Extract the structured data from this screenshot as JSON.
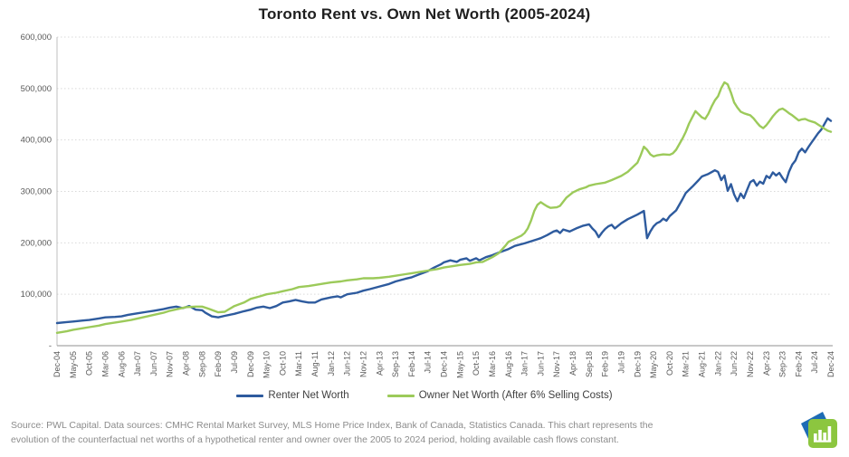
{
  "header": {
    "title": "Toronto Rent vs. Own Net Worth (2005-2024)"
  },
  "legend": [
    {
      "label": "Renter Net Worth",
      "color": "#2e5b9e"
    },
    {
      "label": "Owner Net Worth (After 6% Selling Costs)",
      "color": "#9cca5a"
    }
  ],
  "footer": {
    "line1": "Source: PWL Capital. Data sources: CMHC Rental Market Survey, MLS Home Price Index, Bank of Canada, Statistics Canada. This chart represents the",
    "line2": "evolution of the counterfactual net worths of a hypothetical renter and owner over the 2005 to 2024 period, holding available cash flows constant."
  },
  "logo": {
    "name": "pwl-capital-logo",
    "blue": "#1e6cb5",
    "green": "#8cc63f",
    "bar_glyph": "bar-chart"
  },
  "chart_data": {
    "type": "line",
    "title": "Toronto Rent vs. Own Net Worth (2005-2024)",
    "x_unit": "months since Dec-2004",
    "x_range": [
      0,
      240
    ],
    "x_tick_step_months": 5,
    "x_tick_labels": [
      "Dec-04",
      "May-05",
      "Oct-05",
      "Mar-06",
      "Aug-06",
      "Jan-07",
      "Jun-07",
      "Nov-07",
      "Apr-08",
      "Sep-08",
      "Feb-09",
      "Jul-09",
      "Dec-09",
      "May-10",
      "Oct-10",
      "Mar-11",
      "Aug-11",
      "Jan-12",
      "Jun-12",
      "Nov-12",
      "Apr-13",
      "Sep-13",
      "Feb-14",
      "Jul-14",
      "Dec-14",
      "May-15",
      "Oct-15",
      "Mar-16",
      "Aug-16",
      "Jan-17",
      "Jun-17",
      "Nov-17",
      "Apr-18",
      "Sep-18",
      "Feb-19",
      "Jul-19",
      "Dec-19",
      "May-20",
      "Oct-20",
      "Mar-21",
      "Aug-21",
      "Jan-22",
      "Jun-22",
      "Nov-22",
      "Apr-23",
      "Sep-23",
      "Feb-24",
      "Jul-24",
      "Dec-24"
    ],
    "ylim": [
      0,
      600000
    ],
    "y_ticks": {
      "values": [
        0,
        100000,
        200000,
        300000,
        400000,
        500000,
        600000
      ],
      "labels": [
        "-",
        "100,000",
        "200,000",
        "300,000",
        "400,000",
        "500,000",
        "600,000"
      ]
    },
    "grid": "horizontal dotted",
    "legend_position": "bottom",
    "series": [
      {
        "name": "Renter Net Worth",
        "color": "#2e5b9e",
        "points": [
          [
            0,
            44000
          ],
          [
            3,
            46000
          ],
          [
            5,
            47000
          ],
          [
            8,
            49000
          ],
          [
            10,
            50000
          ],
          [
            13,
            53000
          ],
          [
            15,
            55000
          ],
          [
            18,
            56000
          ],
          [
            20,
            57000
          ],
          [
            22,
            60000
          ],
          [
            25,
            63000
          ],
          [
            28,
            66000
          ],
          [
            30,
            68000
          ],
          [
            33,
            71000
          ],
          [
            35,
            74000
          ],
          [
            37,
            76000
          ],
          [
            39,
            73000
          ],
          [
            41,
            77000
          ],
          [
            43,
            70000
          ],
          [
            45,
            69000
          ],
          [
            46,
            64000
          ],
          [
            48,
            57000
          ],
          [
            50,
            55000
          ],
          [
            52,
            58000
          ],
          [
            55,
            62000
          ],
          [
            58,
            67000
          ],
          [
            60,
            70000
          ],
          [
            62,
            74000
          ],
          [
            64,
            76000
          ],
          [
            66,
            73000
          ],
          [
            68,
            77000
          ],
          [
            70,
            84000
          ],
          [
            72,
            86000
          ],
          [
            74,
            89000
          ],
          [
            76,
            86000
          ],
          [
            78,
            84000
          ],
          [
            80,
            84000
          ],
          [
            82,
            90000
          ],
          [
            85,
            94000
          ],
          [
            87,
            96000
          ],
          [
            88,
            94000
          ],
          [
            90,
            100000
          ],
          [
            93,
            103000
          ],
          [
            95,
            107000
          ],
          [
            97,
            110000
          ],
          [
            100,
            115000
          ],
          [
            103,
            120000
          ],
          [
            105,
            125000
          ],
          [
            108,
            130000
          ],
          [
            110,
            133000
          ],
          [
            112,
            138000
          ],
          [
            115,
            145000
          ],
          [
            117,
            152000
          ],
          [
            119,
            158000
          ],
          [
            120,
            162000
          ],
          [
            122,
            166000
          ],
          [
            124,
            163000
          ],
          [
            125,
            167000
          ],
          [
            127,
            170000
          ],
          [
            128,
            165000
          ],
          [
            130,
            170000
          ],
          [
            131,
            166000
          ],
          [
            133,
            172000
          ],
          [
            135,
            176000
          ],
          [
            137,
            181000
          ],
          [
            140,
            188000
          ],
          [
            142,
            194000
          ],
          [
            145,
            199000
          ],
          [
            147,
            203000
          ],
          [
            149,
            207000
          ],
          [
            150,
            209000
          ],
          [
            152,
            215000
          ],
          [
            154,
            222000
          ],
          [
            155,
            224000
          ],
          [
            156,
            219000
          ],
          [
            157,
            226000
          ],
          [
            159,
            222000
          ],
          [
            161,
            228000
          ],
          [
            163,
            233000
          ],
          [
            165,
            236000
          ],
          [
            166,
            228000
          ],
          [
            167,
            222000
          ],
          [
            168,
            211000
          ],
          [
            169,
            220000
          ],
          [
            170,
            227000
          ],
          [
            171,
            232000
          ],
          [
            172,
            235000
          ],
          [
            173,
            228000
          ],
          [
            175,
            238000
          ],
          [
            177,
            246000
          ],
          [
            179,
            252000
          ],
          [
            180,
            255000
          ],
          [
            182,
            262000
          ],
          [
            183,
            209000
          ],
          [
            184,
            222000
          ],
          [
            185,
            232000
          ],
          [
            186,
            238000
          ],
          [
            187,
            241000
          ],
          [
            188,
            247000
          ],
          [
            189,
            243000
          ],
          [
            190,
            252000
          ],
          [
            192,
            263000
          ],
          [
            194,
            285000
          ],
          [
            195,
            297000
          ],
          [
            197,
            309000
          ],
          [
            199,
            322000
          ],
          [
            200,
            329000
          ],
          [
            202,
            334000
          ],
          [
            204,
            341000
          ],
          [
            205,
            338000
          ],
          [
            206,
            322000
          ],
          [
            207,
            331000
          ],
          [
            208,
            301000
          ],
          [
            209,
            314000
          ],
          [
            210,
            294000
          ],
          [
            211,
            281000
          ],
          [
            212,
            296000
          ],
          [
            213,
            287000
          ],
          [
            214,
            303000
          ],
          [
            215,
            318000
          ],
          [
            216,
            322000
          ],
          [
            217,
            311000
          ],
          [
            218,
            319000
          ],
          [
            219,
            315000
          ],
          [
            220,
            330000
          ],
          [
            221,
            326000
          ],
          [
            222,
            337000
          ],
          [
            223,
            331000
          ],
          [
            224,
            336000
          ],
          [
            225,
            326000
          ],
          [
            226,
            318000
          ],
          [
            227,
            338000
          ],
          [
            228,
            352000
          ],
          [
            229,
            360000
          ],
          [
            230,
            376000
          ],
          [
            231,
            383000
          ],
          [
            232,
            376000
          ],
          [
            233,
            386000
          ],
          [
            234,
            395000
          ],
          [
            235,
            404000
          ],
          [
            236,
            413000
          ],
          [
            237,
            420000
          ],
          [
            238,
            431000
          ],
          [
            239,
            442000
          ],
          [
            240,
            437000
          ]
        ]
      },
      {
        "name": "Owner Net Worth (After 6% Selling Costs)",
        "color": "#9cca5a",
        "points": [
          [
            0,
            25000
          ],
          [
            3,
            28000
          ],
          [
            5,
            31000
          ],
          [
            8,
            34000
          ],
          [
            10,
            36000
          ],
          [
            13,
            39000
          ],
          [
            15,
            42000
          ],
          [
            18,
            45000
          ],
          [
            20,
            47000
          ],
          [
            23,
            50000
          ],
          [
            25,
            53000
          ],
          [
            28,
            57000
          ],
          [
            30,
            60000
          ],
          [
            33,
            64000
          ],
          [
            35,
            68000
          ],
          [
            38,
            72000
          ],
          [
            40,
            75000
          ],
          [
            43,
            76000
          ],
          [
            45,
            76000
          ],
          [
            47,
            72000
          ],
          [
            50,
            65000
          ],
          [
            52,
            66000
          ],
          [
            55,
            77000
          ],
          [
            58,
            84000
          ],
          [
            60,
            91000
          ],
          [
            63,
            96000
          ],
          [
            65,
            100000
          ],
          [
            68,
            103000
          ],
          [
            70,
            106000
          ],
          [
            73,
            110000
          ],
          [
            75,
            114000
          ],
          [
            78,
            116000
          ],
          [
            80,
            118000
          ],
          [
            83,
            121000
          ],
          [
            85,
            123000
          ],
          [
            88,
            125000
          ],
          [
            90,
            127000
          ],
          [
            93,
            129000
          ],
          [
            95,
            131000
          ],
          [
            98,
            131000
          ],
          [
            100,
            132000
          ],
          [
            103,
            134000
          ],
          [
            105,
            136000
          ],
          [
            108,
            139000
          ],
          [
            110,
            141000
          ],
          [
            113,
            144000
          ],
          [
            115,
            146000
          ],
          [
            118,
            149000
          ],
          [
            120,
            152000
          ],
          [
            123,
            155000
          ],
          [
            125,
            157000
          ],
          [
            128,
            159000
          ],
          [
            130,
            162000
          ],
          [
            132,
            163000
          ],
          [
            135,
            172000
          ],
          [
            137,
            180000
          ],
          [
            139,
            194000
          ],
          [
            140,
            202000
          ],
          [
            142,
            208000
          ],
          [
            144,
            214000
          ],
          [
            145,
            219000
          ],
          [
            146,
            228000
          ],
          [
            147,
            243000
          ],
          [
            148,
            262000
          ],
          [
            149,
            274000
          ],
          [
            150,
            279000
          ],
          [
            151,
            275000
          ],
          [
            152,
            271000
          ],
          [
            153,
            268000
          ],
          [
            155,
            269000
          ],
          [
            156,
            272000
          ],
          [
            157,
            280000
          ],
          [
            158,
            288000
          ],
          [
            160,
            298000
          ],
          [
            162,
            304000
          ],
          [
            164,
            308000
          ],
          [
            165,
            311000
          ],
          [
            167,
            314000
          ],
          [
            170,
            317000
          ],
          [
            172,
            322000
          ],
          [
            175,
            330000
          ],
          [
            177,
            338000
          ],
          [
            179,
            350000
          ],
          [
            180,
            356000
          ],
          [
            181,
            370000
          ],
          [
            182,
            387000
          ],
          [
            183,
            381000
          ],
          [
            184,
            372000
          ],
          [
            185,
            368000
          ],
          [
            186,
            370000
          ],
          [
            188,
            372000
          ],
          [
            190,
            371000
          ],
          [
            191,
            374000
          ],
          [
            192,
            381000
          ],
          [
            194,
            403000
          ],
          [
            195,
            416000
          ],
          [
            196,
            432000
          ],
          [
            197,
            444000
          ],
          [
            198,
            456000
          ],
          [
            199,
            450000
          ],
          [
            200,
            444000
          ],
          [
            201,
            441000
          ],
          [
            202,
            451000
          ],
          [
            203,
            465000
          ],
          [
            204,
            477000
          ],
          [
            205,
            485000
          ],
          [
            206,
            501000
          ],
          [
            207,
            512000
          ],
          [
            208,
            508000
          ],
          [
            209,
            492000
          ],
          [
            210,
            473000
          ],
          [
            211,
            463000
          ],
          [
            212,
            455000
          ],
          [
            213,
            452000
          ],
          [
            214,
            450000
          ],
          [
            215,
            448000
          ],
          [
            216,
            442000
          ],
          [
            217,
            434000
          ],
          [
            218,
            427000
          ],
          [
            219,
            423000
          ],
          [
            220,
            429000
          ],
          [
            221,
            437000
          ],
          [
            222,
            446000
          ],
          [
            223,
            453000
          ],
          [
            224,
            459000
          ],
          [
            225,
            461000
          ],
          [
            226,
            457000
          ],
          [
            227,
            452000
          ],
          [
            228,
            448000
          ],
          [
            230,
            438000
          ],
          [
            231,
            440000
          ],
          [
            232,
            441000
          ],
          [
            233,
            438000
          ],
          [
            235,
            434000
          ],
          [
            236,
            430000
          ],
          [
            237,
            426000
          ],
          [
            238,
            422000
          ],
          [
            239,
            418000
          ],
          [
            240,
            416000
          ]
        ]
      }
    ]
  }
}
